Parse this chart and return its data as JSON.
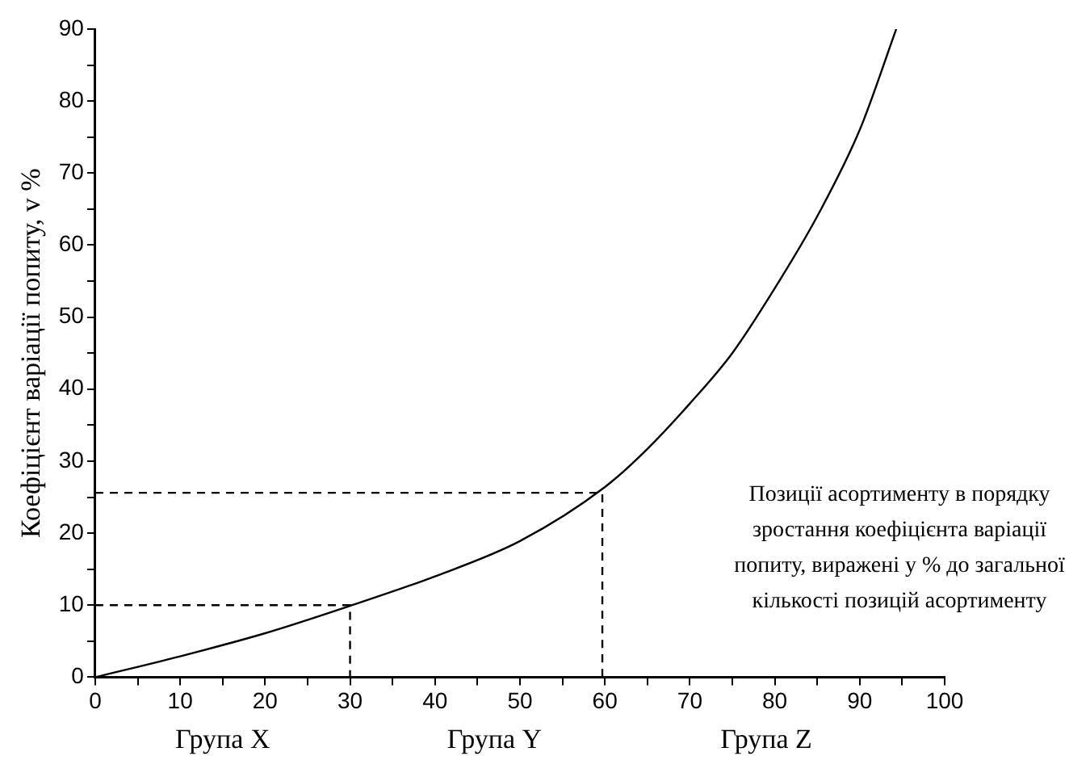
{
  "chart_data": {
    "type": "line",
    "ylabel": "Коефіцієнт варіації попиту, v %",
    "xlim": [
      0,
      100
    ],
    "ylim": [
      0,
      90
    ],
    "xticks": [
      0,
      {
        "value": 5,
        "label": null
      },
      10,
      {
        "value": 15,
        "label": null
      },
      20,
      {
        "value": 25,
        "label": null
      },
      30,
      {
        "value": 35,
        "label": null
      },
      40,
      {
        "value": 45,
        "label": null
      },
      50,
      {
        "value": 55,
        "label": null
      },
      60,
      {
        "value": 65,
        "label": null
      },
      70,
      {
        "value": 75,
        "label": null
      },
      80,
      {
        "value": 85,
        "label": null
      },
      90,
      {
        "value": 95,
        "label": null
      },
      100
    ],
    "yticks": [
      0,
      {
        "value": 5,
        "label": null
      },
      10,
      {
        "value": 15,
        "label": null
      },
      20,
      {
        "value": 25,
        "label": null
      },
      30,
      {
        "value": 35,
        "label": null
      },
      40,
      {
        "value": 45,
        "label": null
      },
      50,
      {
        "value": 55,
        "label": null
      },
      60,
      {
        "value": 65,
        "label": null
      },
      70,
      {
        "value": 75,
        "label": null
      },
      80,
      {
        "value": 85,
        "label": null
      },
      90
    ],
    "grid": false,
    "legend": false,
    "marker": "none",
    "series": [
      {
        "color": "#000000",
        "line_style": "solid",
        "x": [
          0,
          10,
          20,
          30,
          40,
          50,
          60,
          65,
          70,
          75,
          80,
          85,
          90,
          94.3
        ],
        "values": [
          0,
          2.9,
          6.1,
          9.9,
          14,
          18.9,
          26.4,
          31.7,
          38,
          45,
          54,
          64,
          76,
          90
        ]
      },
      {
        "color": "#000000",
        "line_style": "dashed",
        "x": [
          0,
          30,
          30
        ],
        "values": [
          10,
          10,
          0
        ]
      },
      {
        "color": "#000000",
        "line_style": "dashed",
        "x": [
          0,
          59.7,
          59.7
        ],
        "values": [
          25.6,
          25.6,
          0
        ]
      }
    ],
    "annotations": [
      "Група X",
      "Група Y",
      "Група Z",
      "Позиції асортименту в порядку зростання коефіцієнта варіації попиту, виражені у % до загальної кількості позицій асортименту"
    ]
  }
}
